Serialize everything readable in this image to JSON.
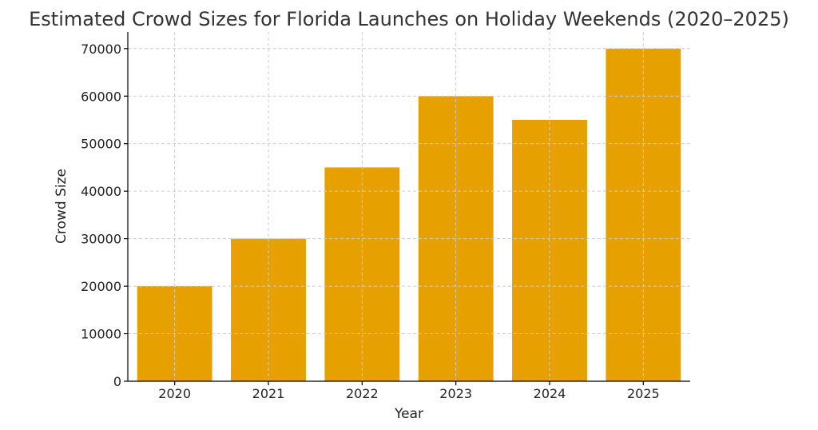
{
  "chart_data": {
    "type": "bar",
    "title": "Estimated Crowd Sizes for Florida Launches on Holiday Weekends (2020–2025)",
    "xlabel": "Year",
    "ylabel": "Crowd Size",
    "categories": [
      "2020",
      "2021",
      "2022",
      "2023",
      "2024",
      "2025"
    ],
    "values": [
      20000,
      30000,
      45000,
      60000,
      55000,
      70000
    ],
    "ylim": [
      0,
      73500
    ],
    "yticks": [
      0,
      10000,
      20000,
      30000,
      40000,
      50000,
      60000,
      70000
    ],
    "ytick_labels": [
      "0",
      "10000",
      "20000",
      "30000",
      "40000",
      "50000",
      "60000",
      "70000"
    ],
    "grid": true,
    "bar_color": "#E6A000"
  }
}
